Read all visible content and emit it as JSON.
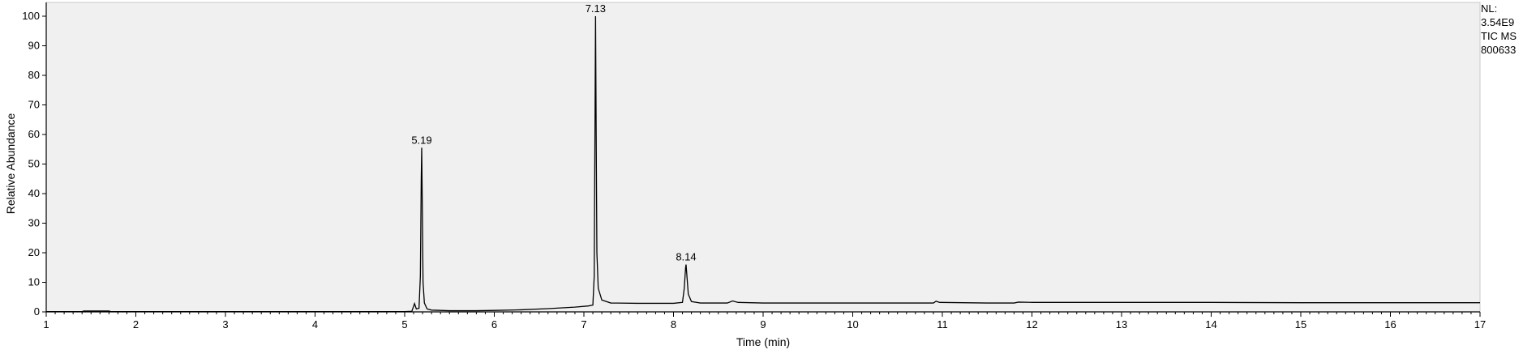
{
  "info": [
    "NL:",
    "3.54E9",
    "TIC  MS",
    "800633"
  ],
  "chart_data": {
    "type": "line",
    "xlabel": "Time (min)",
    "ylabel": "Relative Abundance",
    "xlim": [
      1,
      17
    ],
    "ylim": [
      0,
      100
    ],
    "xticks": [
      1,
      2,
      3,
      4,
      5,
      6,
      7,
      8,
      9,
      10,
      11,
      12,
      13,
      14,
      15,
      16,
      17
    ],
    "yticks": [
      0,
      10,
      20,
      30,
      40,
      50,
      60,
      70,
      80,
      90,
      100
    ],
    "plot_background": "#f0f0f0",
    "line_color": "#000000",
    "peak_labels": [
      {
        "text": "5.19",
        "x": 5.19,
        "y": 55.5
      },
      {
        "text": "7.13",
        "x": 7.13,
        "y": 100
      },
      {
        "text": "8.14",
        "x": 8.14,
        "y": 16
      }
    ],
    "series": [
      {
        "points": [
          [
            1.0,
            0.1
          ],
          [
            1.4,
            0.1
          ],
          [
            1.42,
            0.3
          ],
          [
            1.7,
            0.3
          ],
          [
            1.72,
            0.1
          ],
          [
            2.0,
            0.1
          ],
          [
            3.0,
            0.1
          ],
          [
            4.0,
            0.1
          ],
          [
            4.5,
            0.1
          ],
          [
            5.0,
            0.1
          ],
          [
            5.08,
            0.2
          ],
          [
            5.11,
            2.8
          ],
          [
            5.13,
            1.0
          ],
          [
            5.16,
            1.2
          ],
          [
            5.175,
            12
          ],
          [
            5.185,
            45
          ],
          [
            5.19,
            55.5
          ],
          [
            5.197,
            35
          ],
          [
            5.205,
            10
          ],
          [
            5.22,
            3
          ],
          [
            5.25,
            1.0
          ],
          [
            5.3,
            0.6
          ],
          [
            5.5,
            0.4
          ],
          [
            5.8,
            0.4
          ],
          [
            6.0,
            0.5
          ],
          [
            6.3,
            0.7
          ],
          [
            6.6,
            1.1
          ],
          [
            6.9,
            1.6
          ],
          [
            7.05,
            2.0
          ],
          [
            7.1,
            2.3
          ],
          [
            7.115,
            12
          ],
          [
            7.125,
            70
          ],
          [
            7.13,
            100
          ],
          [
            7.138,
            55
          ],
          [
            7.145,
            20
          ],
          [
            7.16,
            8
          ],
          [
            7.2,
            4
          ],
          [
            7.3,
            3.0
          ],
          [
            7.6,
            2.9
          ],
          [
            8.0,
            2.9
          ],
          [
            8.1,
            3.2
          ],
          [
            8.12,
            8
          ],
          [
            8.135,
            15
          ],
          [
            8.14,
            16
          ],
          [
            8.15,
            12
          ],
          [
            8.165,
            6
          ],
          [
            8.2,
            3.5
          ],
          [
            8.3,
            3.0
          ],
          [
            8.6,
            3.0
          ],
          [
            8.66,
            3.7
          ],
          [
            8.72,
            3.2
          ],
          [
            9.0,
            3.0
          ],
          [
            9.5,
            3.0
          ],
          [
            10.0,
            3.0
          ],
          [
            10.5,
            3.0
          ],
          [
            10.9,
            3.0
          ],
          [
            10.93,
            3.6
          ],
          [
            10.97,
            3.2
          ],
          [
            11.5,
            3.0
          ],
          [
            11.8,
            3.0
          ],
          [
            11.85,
            3.3
          ],
          [
            12.0,
            3.2
          ],
          [
            13.0,
            3.2
          ],
          [
            14.0,
            3.2
          ],
          [
            15.0,
            3.1
          ],
          [
            16.0,
            3.1
          ],
          [
            17.0,
            3.1
          ]
        ]
      }
    ]
  }
}
